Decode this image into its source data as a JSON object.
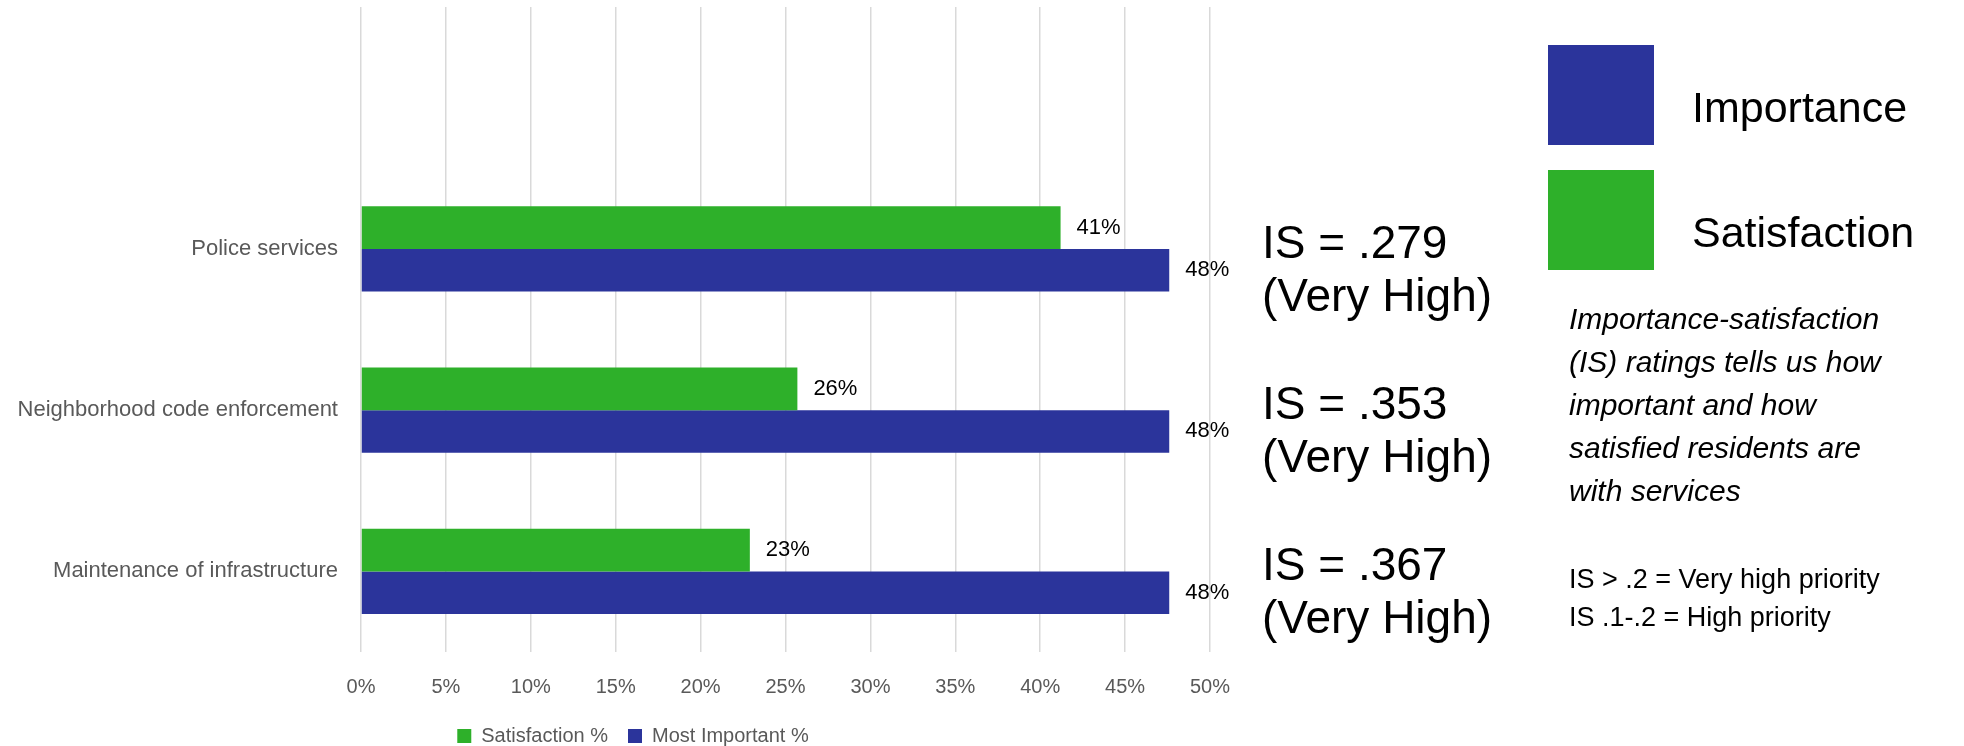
{
  "chart_data": {
    "type": "bar",
    "orientation": "horizontal",
    "categories": [
      null,
      "Police services",
      "Neighborhood code enforcement",
      "Maintenance of infrastructure"
    ],
    "series": [
      {
        "name": "Satisfaction %",
        "color": "#2eb02a",
        "values": [
          null,
          41.2,
          25.7,
          22.9
        ],
        "value_labels": [
          null,
          "41%",
          "26%",
          "23%"
        ]
      },
      {
        "name": "Most Important %",
        "color": "#2b349b",
        "values": [
          null,
          47.6,
          47.6,
          47.6
        ],
        "value_labels": [
          null,
          "48%",
          "48%",
          "48%"
        ]
      }
    ],
    "xlim": [
      0,
      50
    ],
    "xticks": [
      {
        "value": 0,
        "label": "0%"
      },
      {
        "value": 5,
        "label": "5%"
      },
      {
        "value": 10,
        "label": "10%"
      },
      {
        "value": 15,
        "label": "15%"
      },
      {
        "value": 20,
        "label": "20%"
      },
      {
        "value": 25,
        "label": "25%"
      },
      {
        "value": 30,
        "label": "30%"
      },
      {
        "value": 35,
        "label": "35%"
      },
      {
        "value": 40,
        "label": "40%"
      },
      {
        "value": 45,
        "label": "45%"
      },
      {
        "value": 50,
        "label": "50%"
      }
    ],
    "grid": "x",
    "legend": "bottom",
    "annotations": [
      "IS = .279\n(Very High)",
      "IS = .353\n(Very High)",
      "IS = .367\n(Very High)",
      "Importance",
      "Satisfaction",
      "Importance-satisfaction (IS) ratings tells us how important and how satisfied residents are with services",
      "IS > .2 = Very high priority",
      "IS .1-.2 = High priority"
    ]
  }
}
